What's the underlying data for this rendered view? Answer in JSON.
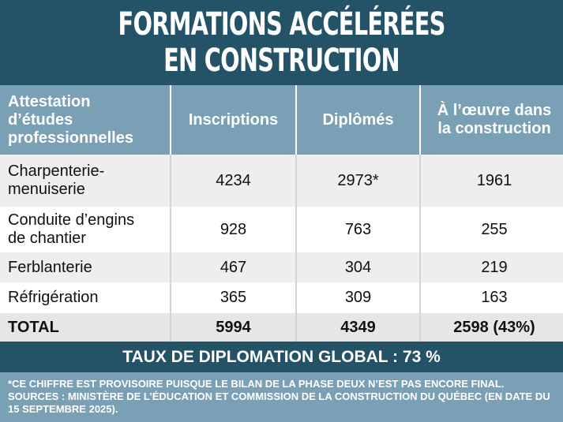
{
  "header": {
    "title": [
      "FORMATIONS ACCÉLÉRÉES",
      "EN CONSTRUCTION"
    ]
  },
  "table": {
    "columns": [
      [
        "Attestation",
        "d’études",
        "professionnelles"
      ],
      [
        "Inscriptions"
      ],
      [
        "Diplômés"
      ],
      [
        "À l’œuvre dans",
        "la construction"
      ]
    ],
    "rows": [
      [
        [
          "Charpenterie-",
          "menuiserie"
        ],
        4234,
        "2973*",
        1961
      ],
      [
        [
          "Conduite d’engins",
          "de chantier"
        ],
        928,
        763,
        255
      ],
      [
        [
          "Ferblanterie"
        ],
        467,
        304,
        219
      ],
      [
        [
          "Réfrigération"
        ],
        365,
        309,
        163
      ]
    ],
    "total": [
      "TOTAL",
      5994,
      4349,
      "2598 (43%)"
    ]
  },
  "summary": "TAUX DE DIPLOMATION GLOBAL : 73 %",
  "footnote": "*CE CHIFFRE EST PROVISOIRE PUISQUE LE BILAN DE LA PHASE DEUX N’EST PAS ENCORE FINAL. SOURCES : MINISTÈRE DE L’ÉDUCATION ET COMMISSION DE LA CONSTRUCTION DU QUÉBEC (EN DATE DU 15 SEPTEMBRE 2025)."
}
